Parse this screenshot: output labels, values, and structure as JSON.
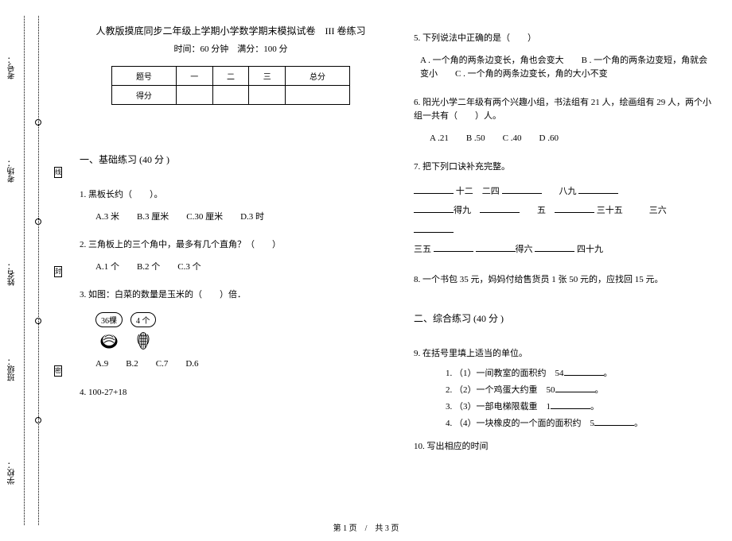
{
  "binding": {
    "labels": [
      "考号：",
      "考场：",
      "姓名：",
      "班级：",
      "学校："
    ],
    "seal_chars": [
      "线",
      "封",
      "密"
    ]
  },
  "header": {
    "title": "人教版摸底同步二年级上学期小学数学期末模拟试卷　III 卷练习",
    "subtitle": "时间：60 分钟　满分：100 分"
  },
  "score_table": {
    "headers": [
      "题号",
      "一",
      "二",
      "三",
      "总分"
    ],
    "row_label": "得分"
  },
  "section1": {
    "title": "一、基础练习 (40 分 )",
    "q1": {
      "text": "1.  黑板长约（　　）。",
      "opts": "A.3 米　　B.3 厘米　　C.30 厘米　　D.3 时"
    },
    "q2": {
      "text": "2.  三角板上的三个角中，最多有几个直角？（　　）",
      "opts": "A.1 个　　B.2 个　　C.3 个"
    },
    "q3": {
      "text": "3.  如图：白菜的数量是玉米的（　　）倍．",
      "bubble1": "36棵",
      "bubble2": "4 个",
      "opts": "A.9　　B.2　　C.7　　D.6"
    },
    "q4": {
      "text": "4. 100-27+18"
    },
    "q5": {
      "text": "5.  下列说法中正确的是（　　）",
      "opts": "A . 一个角的两条边变长，角也会变大　　B . 一个角的两条边变短，角就会变小　　C . 一个角的两条边变长，角的大小不变"
    },
    "q6": {
      "text": "6.  阳光小学二年级有两个兴趣小组，书法组有 21 人，绘画组有 29 人，两个小组一共有（　　）人。",
      "opts": "A .21　　B .50　　C .40　　D .60"
    },
    "q7": {
      "text": "7.  把下列口诀补充完整。",
      "lines": [
        [
          {
            "b": 50
          },
          {
            "t": " 十二　二四 "
          },
          {
            "b": 50
          },
          {
            "t": "　　八九 "
          },
          {
            "b": 50
          }
        ],
        [
          {
            "b": 50
          },
          {
            "t": "得九　"
          },
          {
            "b": 50
          },
          {
            "t": "　　五　"
          },
          {
            "b": 50
          },
          {
            "t": " 三十五　　　三六"
          }
        ],
        [
          {
            "b": 50
          }
        ],
        [
          {
            "t": "三五 "
          },
          {
            "b": 50
          },
          {
            "t": " "
          },
          {
            "b": 50
          },
          {
            "t": "得六 "
          },
          {
            "b": 50
          },
          {
            "t": " 四十九"
          }
        ]
      ]
    },
    "q8": {
      "text": "8.  一个书包 35 元，妈妈付给售货员 1 张 50 元的，应找回 15 元。"
    }
  },
  "section2": {
    "title": "二、综合练习 (40 分 )",
    "q9": {
      "text": "9.  在括号里填上适当的单位。",
      "items": [
        "1. （1）一间教室的面积约　54",
        "2. （2）一个鸡蛋大约重　50",
        "3. （3）一部电梯限载重　1",
        "4. （4）一块橡皮的一个面的面积约　5"
      ]
    },
    "q10": {
      "text": "10.  写出相应的时间"
    }
  },
  "footer": "第 1 页　/　共 3 页"
}
